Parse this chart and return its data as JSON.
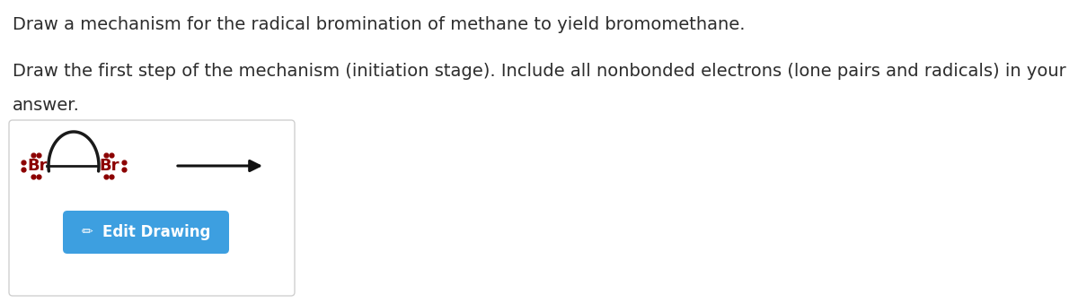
{
  "line1": "Draw a mechanism for the radical bromination of methane to yield bromomethane.",
  "line2": "Draw the first step of the mechanism (initiation stage). Include all nonbonded electrons (lone pairs and radicals) in your",
  "line3": "answer.",
  "bg_color": "#ffffff",
  "box_border_color": "#d0d0d0",
  "button_color": "#3d9fe0",
  "button_text": "Edit Drawing",
  "button_text_color": "#ffffff",
  "arrow_color": "#111111",
  "br_color": "#8b0000",
  "bond_color": "#1a1a1a",
  "text_color": "#2d2d2d",
  "font_size_main": 14,
  "font_size_br": 13,
  "font_size_button": 12
}
